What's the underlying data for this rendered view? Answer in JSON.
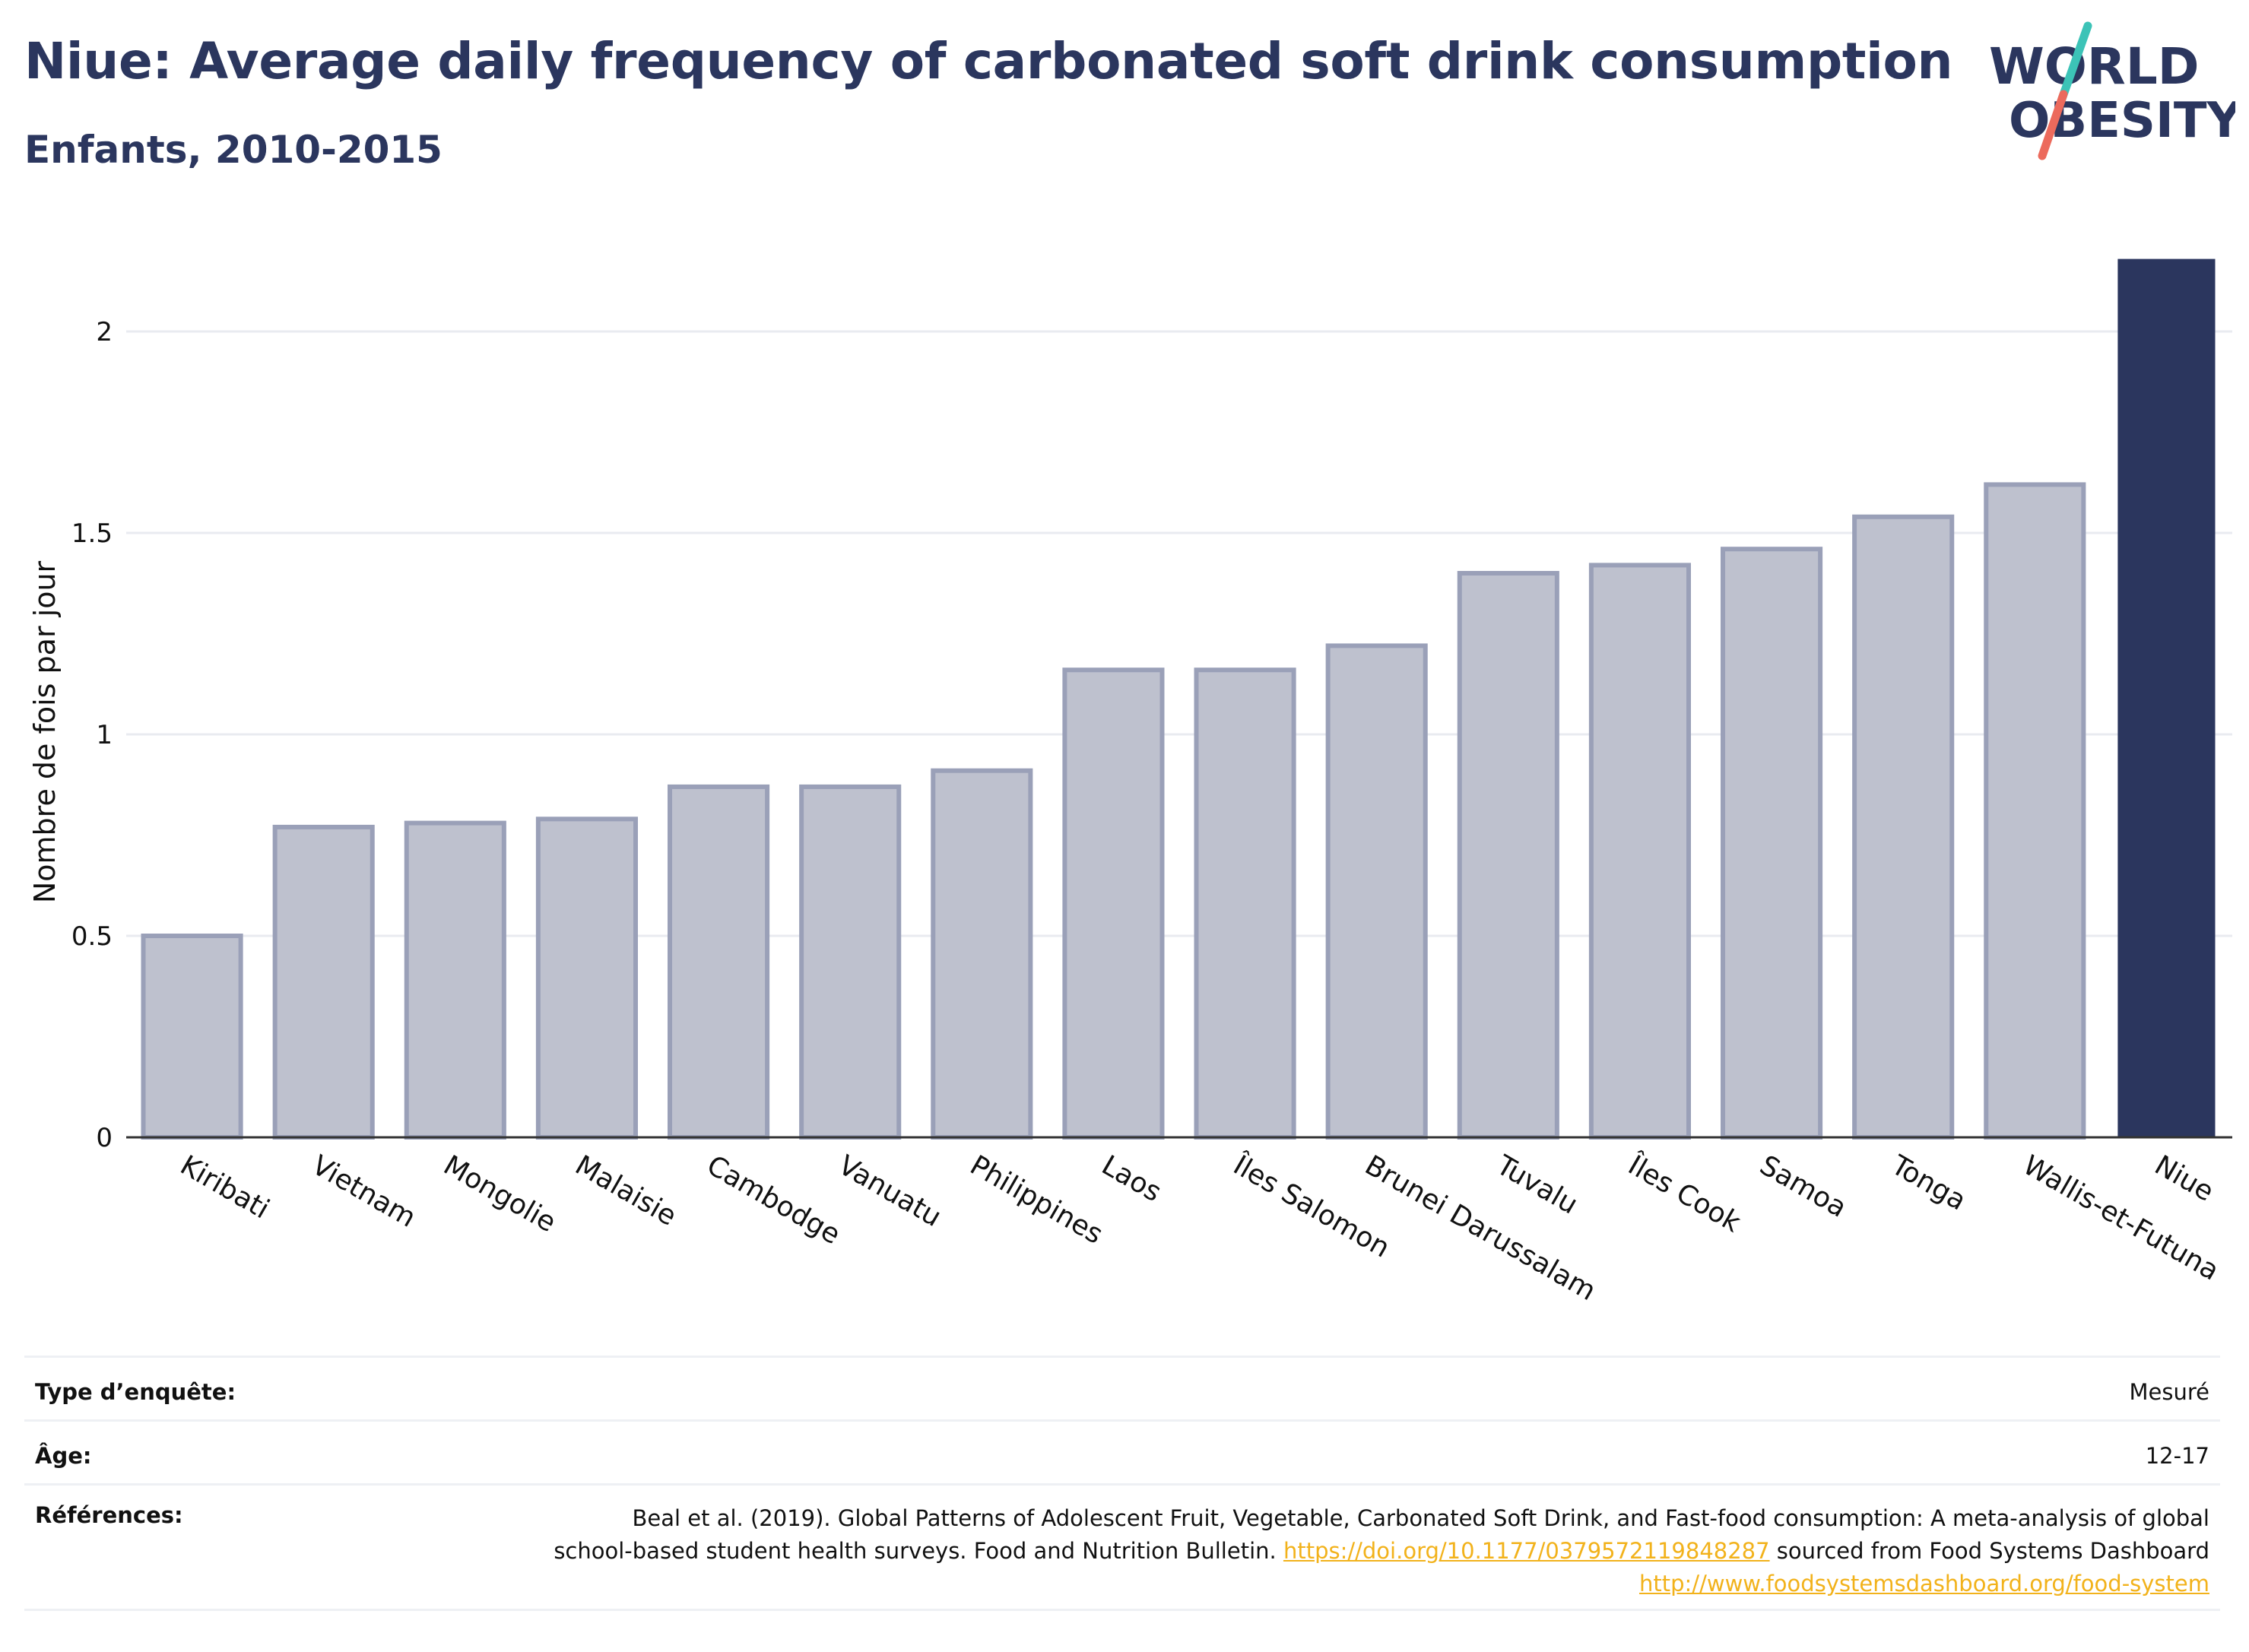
{
  "header": {
    "title": "Niue: Average daily frequency of carbonated soft drink consumption",
    "subtitle": "Enfants, 2010-2015"
  },
  "logo": {
    "line1": "WORLD",
    "line2": "OBESITY"
  },
  "colors": {
    "title": "#2b365e",
    "highlight_bar": "#2b365e",
    "default_bar": "#bec1ce",
    "default_bar_border": "#9aa0b8",
    "link": "#f2b21b",
    "logo_teal": "#3cc3b7",
    "logo_coral": "#ec6a5c"
  },
  "chart_data": {
    "type": "bar",
    "categories": [
      "Kiribati",
      "Vietnam",
      "Mongolie",
      "Malaisie",
      "Cambodge",
      "Vanuatu",
      "Philippines",
      "Laos",
      "Îles Salomon",
      "Brunei Darussalam",
      "Tuvalu",
      "Îles Cook",
      "Samoa",
      "Tonga",
      "Wallis-et-Futuna",
      "Niue"
    ],
    "values": [
      0.5,
      0.77,
      0.78,
      0.79,
      0.87,
      0.87,
      0.91,
      1.16,
      1.16,
      1.22,
      1.4,
      1.42,
      1.46,
      1.54,
      1.62,
      2.18
    ],
    "highlight": "Niue",
    "ylabel": "Nombre de fois par jour",
    "xlabel": "",
    "ylim": [
      0,
      2.2
    ],
    "yticks": [
      0,
      0.5,
      1,
      1.5,
      2
    ],
    "ytick_labels": [
      "0",
      "0.5",
      "1",
      "1.5",
      "2"
    ],
    "grid": true
  },
  "meta": {
    "survey_label": "Type d’enquête:",
    "survey_value": "Mesuré",
    "age_label": "Âge:",
    "age_value": "12-17",
    "refs_label": "Références:",
    "refs_text_1": "Beal et al. (2019). Global Patterns of Adolescent Fruit, Vegetable, Carbonated Soft Drink, and Fast-food consumption: A meta-analysis of global school-based student health surveys. Food and Nutrition Bulletin. ",
    "refs_link_1": "https://doi.org/10.1177/0379572119848287",
    "refs_text_2": " sourced from Food Systems Dashboard ",
    "refs_link_2": "http://www.foodsystemsdashboard.org/food-system"
  }
}
